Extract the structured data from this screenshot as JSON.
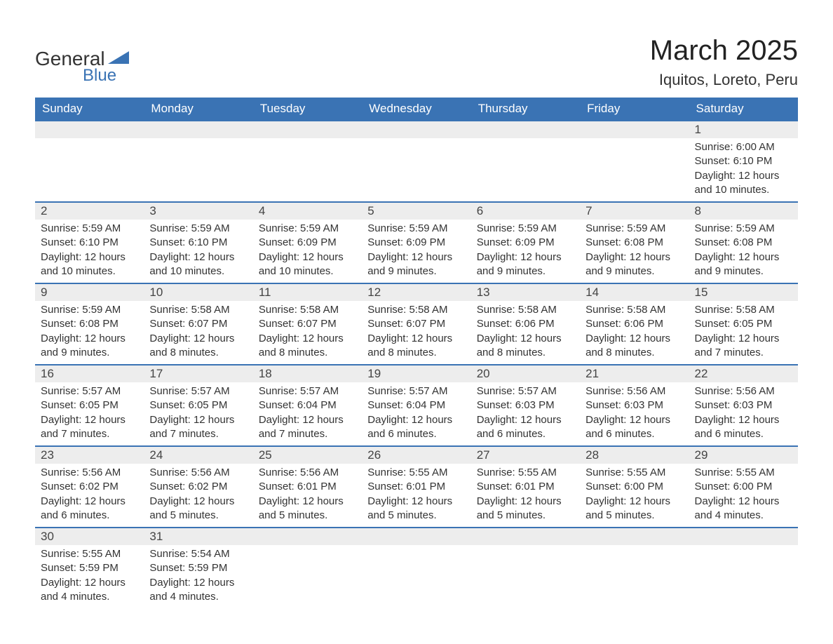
{
  "brand": {
    "general": "General",
    "blue": "Blue"
  },
  "title": "March 2025",
  "location": "Iquitos, Loreto, Peru",
  "colors": {
    "header_bg": "#3a73b4",
    "header_text": "#ffffff",
    "row_separator": "#3a73b4",
    "daynum_bg": "#ededed",
    "text": "#333333",
    "background": "#ffffff"
  },
  "fonts": {
    "title_size_pt": 30,
    "location_size_pt": 16,
    "dayheader_size_pt": 13,
    "daynum_size_pt": 13,
    "body_size_pt": 11
  },
  "day_headers": [
    "Sunday",
    "Monday",
    "Tuesday",
    "Wednesday",
    "Thursday",
    "Friday",
    "Saturday"
  ],
  "weeks": [
    [
      {
        "n": "",
        "lines": [
          "",
          "",
          "",
          ""
        ]
      },
      {
        "n": "",
        "lines": [
          "",
          "",
          "",
          ""
        ]
      },
      {
        "n": "",
        "lines": [
          "",
          "",
          "",
          ""
        ]
      },
      {
        "n": "",
        "lines": [
          "",
          "",
          "",
          ""
        ]
      },
      {
        "n": "",
        "lines": [
          "",
          "",
          "",
          ""
        ]
      },
      {
        "n": "",
        "lines": [
          "",
          "",
          "",
          ""
        ]
      },
      {
        "n": "1",
        "lines": [
          "Sunrise: 6:00 AM",
          "Sunset: 6:10 PM",
          "Daylight: 12 hours",
          "and 10 minutes."
        ]
      }
    ],
    [
      {
        "n": "2",
        "lines": [
          "Sunrise: 5:59 AM",
          "Sunset: 6:10 PM",
          "Daylight: 12 hours",
          "and 10 minutes."
        ]
      },
      {
        "n": "3",
        "lines": [
          "Sunrise: 5:59 AM",
          "Sunset: 6:10 PM",
          "Daylight: 12 hours",
          "and 10 minutes."
        ]
      },
      {
        "n": "4",
        "lines": [
          "Sunrise: 5:59 AM",
          "Sunset: 6:09 PM",
          "Daylight: 12 hours",
          "and 10 minutes."
        ]
      },
      {
        "n": "5",
        "lines": [
          "Sunrise: 5:59 AM",
          "Sunset: 6:09 PM",
          "Daylight: 12 hours",
          "and 9 minutes."
        ]
      },
      {
        "n": "6",
        "lines": [
          "Sunrise: 5:59 AM",
          "Sunset: 6:09 PM",
          "Daylight: 12 hours",
          "and 9 minutes."
        ]
      },
      {
        "n": "7",
        "lines": [
          "Sunrise: 5:59 AM",
          "Sunset: 6:08 PM",
          "Daylight: 12 hours",
          "and 9 minutes."
        ]
      },
      {
        "n": "8",
        "lines": [
          "Sunrise: 5:59 AM",
          "Sunset: 6:08 PM",
          "Daylight: 12 hours",
          "and 9 minutes."
        ]
      }
    ],
    [
      {
        "n": "9",
        "lines": [
          "Sunrise: 5:59 AM",
          "Sunset: 6:08 PM",
          "Daylight: 12 hours",
          "and 9 minutes."
        ]
      },
      {
        "n": "10",
        "lines": [
          "Sunrise: 5:58 AM",
          "Sunset: 6:07 PM",
          "Daylight: 12 hours",
          "and 8 minutes."
        ]
      },
      {
        "n": "11",
        "lines": [
          "Sunrise: 5:58 AM",
          "Sunset: 6:07 PM",
          "Daylight: 12 hours",
          "and 8 minutes."
        ]
      },
      {
        "n": "12",
        "lines": [
          "Sunrise: 5:58 AM",
          "Sunset: 6:07 PM",
          "Daylight: 12 hours",
          "and 8 minutes."
        ]
      },
      {
        "n": "13",
        "lines": [
          "Sunrise: 5:58 AM",
          "Sunset: 6:06 PM",
          "Daylight: 12 hours",
          "and 8 minutes."
        ]
      },
      {
        "n": "14",
        "lines": [
          "Sunrise: 5:58 AM",
          "Sunset: 6:06 PM",
          "Daylight: 12 hours",
          "and 8 minutes."
        ]
      },
      {
        "n": "15",
        "lines": [
          "Sunrise: 5:58 AM",
          "Sunset: 6:05 PM",
          "Daylight: 12 hours",
          "and 7 minutes."
        ]
      }
    ],
    [
      {
        "n": "16",
        "lines": [
          "Sunrise: 5:57 AM",
          "Sunset: 6:05 PM",
          "Daylight: 12 hours",
          "and 7 minutes."
        ]
      },
      {
        "n": "17",
        "lines": [
          "Sunrise: 5:57 AM",
          "Sunset: 6:05 PM",
          "Daylight: 12 hours",
          "and 7 minutes."
        ]
      },
      {
        "n": "18",
        "lines": [
          "Sunrise: 5:57 AM",
          "Sunset: 6:04 PM",
          "Daylight: 12 hours",
          "and 7 minutes."
        ]
      },
      {
        "n": "19",
        "lines": [
          "Sunrise: 5:57 AM",
          "Sunset: 6:04 PM",
          "Daylight: 12 hours",
          "and 6 minutes."
        ]
      },
      {
        "n": "20",
        "lines": [
          "Sunrise: 5:57 AM",
          "Sunset: 6:03 PM",
          "Daylight: 12 hours",
          "and 6 minutes."
        ]
      },
      {
        "n": "21",
        "lines": [
          "Sunrise: 5:56 AM",
          "Sunset: 6:03 PM",
          "Daylight: 12 hours",
          "and 6 minutes."
        ]
      },
      {
        "n": "22",
        "lines": [
          "Sunrise: 5:56 AM",
          "Sunset: 6:03 PM",
          "Daylight: 12 hours",
          "and 6 minutes."
        ]
      }
    ],
    [
      {
        "n": "23",
        "lines": [
          "Sunrise: 5:56 AM",
          "Sunset: 6:02 PM",
          "Daylight: 12 hours",
          "and 6 minutes."
        ]
      },
      {
        "n": "24",
        "lines": [
          "Sunrise: 5:56 AM",
          "Sunset: 6:02 PM",
          "Daylight: 12 hours",
          "and 5 minutes."
        ]
      },
      {
        "n": "25",
        "lines": [
          "Sunrise: 5:56 AM",
          "Sunset: 6:01 PM",
          "Daylight: 12 hours",
          "and 5 minutes."
        ]
      },
      {
        "n": "26",
        "lines": [
          "Sunrise: 5:55 AM",
          "Sunset: 6:01 PM",
          "Daylight: 12 hours",
          "and 5 minutes."
        ]
      },
      {
        "n": "27",
        "lines": [
          "Sunrise: 5:55 AM",
          "Sunset: 6:01 PM",
          "Daylight: 12 hours",
          "and 5 minutes."
        ]
      },
      {
        "n": "28",
        "lines": [
          "Sunrise: 5:55 AM",
          "Sunset: 6:00 PM",
          "Daylight: 12 hours",
          "and 5 minutes."
        ]
      },
      {
        "n": "29",
        "lines": [
          "Sunrise: 5:55 AM",
          "Sunset: 6:00 PM",
          "Daylight: 12 hours",
          "and 4 minutes."
        ]
      }
    ],
    [
      {
        "n": "30",
        "lines": [
          "Sunrise: 5:55 AM",
          "Sunset: 5:59 PM",
          "Daylight: 12 hours",
          "and 4 minutes."
        ]
      },
      {
        "n": "31",
        "lines": [
          "Sunrise: 5:54 AM",
          "Sunset: 5:59 PM",
          "Daylight: 12 hours",
          "and 4 minutes."
        ]
      },
      {
        "n": "",
        "lines": [
          "",
          "",
          "",
          ""
        ]
      },
      {
        "n": "",
        "lines": [
          "",
          "",
          "",
          ""
        ]
      },
      {
        "n": "",
        "lines": [
          "",
          "",
          "",
          ""
        ]
      },
      {
        "n": "",
        "lines": [
          "",
          "",
          "",
          ""
        ]
      },
      {
        "n": "",
        "lines": [
          "",
          "",
          "",
          ""
        ]
      }
    ]
  ]
}
